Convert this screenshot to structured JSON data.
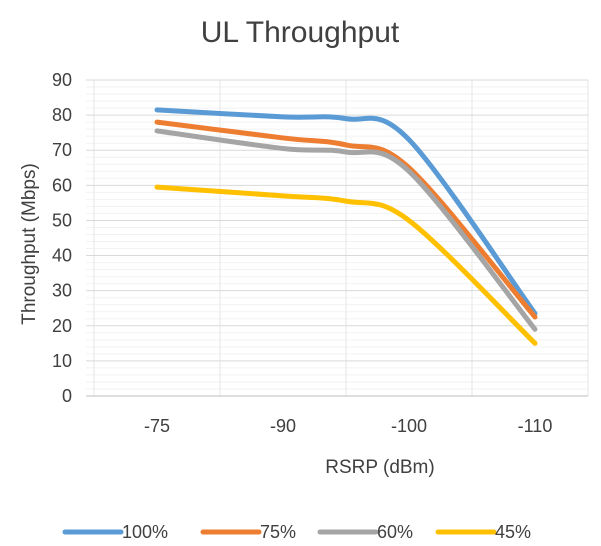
{
  "chart_data": {
    "type": "line",
    "title": "UL Throughput",
    "xlabel": "RSRP (dBm)",
    "ylabel": "Throughput (Mbps)",
    "categories": [
      "-75",
      "-90",
      "-100",
      "-110"
    ],
    "ylim": [
      0,
      90
    ],
    "yticks": [
      0,
      10,
      20,
      30,
      40,
      50,
      60,
      70,
      80,
      90
    ],
    "grid": true,
    "smooth": true,
    "legend_position": "bottom",
    "series": [
      {
        "name": "100%",
        "color": "#5B9BD5",
        "x": [
          -75,
          -90,
          -95,
          -100,
          -110
        ],
        "values": [
          81.5,
          79.5,
          79,
          73,
          23.5
        ]
      },
      {
        "name": "75%",
        "color": "#ED7D31",
        "x": [
          -75,
          -90,
          -95,
          -100,
          -110
        ],
        "values": [
          78,
          73.5,
          71.5,
          65,
          22.5
        ]
      },
      {
        "name": "60%",
        "color": "#A5A5A5",
        "x": [
          -75,
          -90,
          -95,
          -100,
          -110
        ],
        "values": [
          75.5,
          70.5,
          69.5,
          64,
          19
        ]
      },
      {
        "name": "45%",
        "color": "#FFC000",
        "x": [
          -75,
          -90,
          -95,
          -100,
          -110
        ],
        "values": [
          59.5,
          57,
          55.5,
          50,
          15
        ]
      }
    ]
  }
}
